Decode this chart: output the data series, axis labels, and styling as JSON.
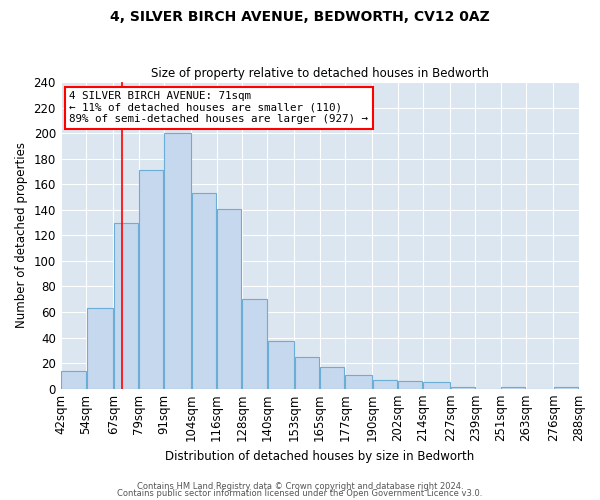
{
  "title": "4, SILVER BIRCH AVENUE, BEDWORTH, CV12 0AZ",
  "subtitle": "Size of property relative to detached houses in Bedworth",
  "xlabel": "Distribution of detached houses by size in Bedworth",
  "ylabel": "Number of detached properties",
  "bar_left_edges": [
    42,
    54,
    67,
    79,
    91,
    104,
    116,
    128,
    140,
    153,
    165,
    177,
    190,
    202,
    214,
    227,
    239,
    251,
    263,
    276
  ],
  "bar_widths": [
    12,
    13,
    12,
    12,
    13,
    12,
    12,
    12,
    13,
    12,
    12,
    13,
    12,
    12,
    13,
    12,
    12,
    12,
    13,
    12
  ],
  "bar_heights": [
    14,
    63,
    130,
    171,
    200,
    153,
    141,
    70,
    37,
    25,
    17,
    11,
    7,
    6,
    5,
    1,
    0,
    1,
    0,
    1
  ],
  "bar_color": "#c5d8ee",
  "bar_edge_color": "#6aadd5",
  "tick_labels": [
    "42sqm",
    "54sqm",
    "67sqm",
    "79sqm",
    "91sqm",
    "104sqm",
    "116sqm",
    "128sqm",
    "140sqm",
    "153sqm",
    "165sqm",
    "177sqm",
    "190sqm",
    "202sqm",
    "214sqm",
    "227sqm",
    "239sqm",
    "251sqm",
    "263sqm",
    "276sqm",
    "288sqm"
  ],
  "tick_positions": [
    42,
    54,
    67,
    79,
    91,
    104,
    116,
    128,
    140,
    153,
    165,
    177,
    190,
    202,
    214,
    227,
    239,
    251,
    263,
    276,
    288
  ],
  "red_line_x": 71,
  "annotation_line1": "4 SILVER BIRCH AVENUE: 71sqm",
  "annotation_line2": "← 11% of detached houses are smaller (110)",
  "annotation_line3": "89% of semi-detached houses are larger (927) →",
  "ylim": [
    0,
    240
  ],
  "xlim": [
    42,
    288
  ],
  "yticks": [
    0,
    20,
    40,
    60,
    80,
    100,
    120,
    140,
    160,
    180,
    200,
    220,
    240
  ],
  "fig_bg_color": "#ffffff",
  "plot_bg_color": "#dce6f0",
  "grid_color": "#ffffff",
  "footer_line1": "Contains HM Land Registry data © Crown copyright and database right 2024.",
  "footer_line2": "Contains public sector information licensed under the Open Government Licence v3.0."
}
